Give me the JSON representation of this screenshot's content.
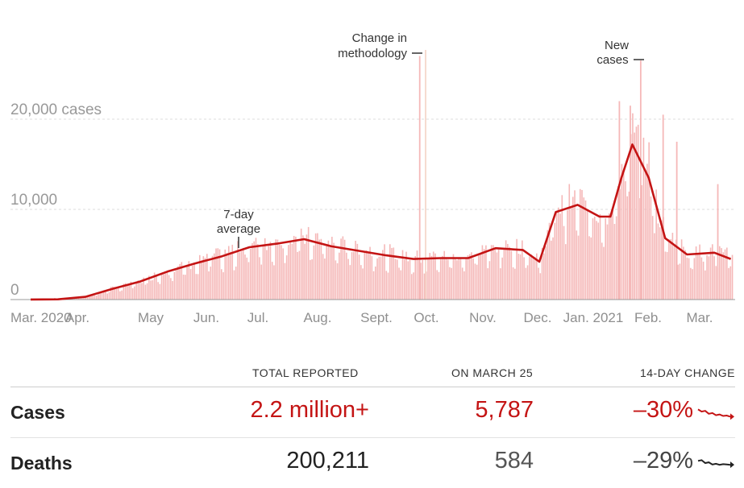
{
  "chart_data": {
    "type": "bar",
    "y_ticks": [
      {
        "value": 0,
        "label": "0"
      },
      {
        "value": 10000,
        "label": "10,000"
      },
      {
        "value": 20000,
        "label": "20,000 cases"
      }
    ],
    "ylim": [
      0,
      27500
    ],
    "x_ticks": [
      "Mar. 2020",
      "Apr.",
      "May",
      "Jun.",
      "Jul.",
      "Aug.",
      "Sept.",
      "Oct.",
      "Nov.",
      "Dec.",
      "Jan. 2021",
      "Feb.",
      "Mar."
    ],
    "grid": true,
    "average_series": {
      "name": "7-day average",
      "months": [
        0,
        0.5,
        1,
        1.5,
        2,
        2.5,
        3,
        3.5,
        4,
        4.5,
        5,
        5.5,
        6,
        6.5,
        7,
        7.5,
        8,
        8.5,
        9,
        9.3,
        9.6,
        10,
        10.4,
        10.6,
        10.8,
        11,
        11.3,
        11.6,
        12,
        12.5,
        12.8
      ],
      "values": [
        10,
        30,
        300,
        1200,
        2000,
        3100,
        4000,
        4800,
        5800,
        6200,
        6700,
        5900,
        5400,
        4900,
        4500,
        4600,
        4600,
        5700,
        5500,
        4200,
        9700,
        10500,
        9200,
        9200,
        13500,
        17200,
        13500,
        6800,
        5000,
        5200,
        4500
      ]
    },
    "daily_cases": {
      "name": "New cases",
      "months": [
        0,
        1,
        1.5,
        2,
        2.5,
        3,
        3.5,
        4,
        4.5,
        5,
        5.5,
        6,
        6.5,
        7,
        7.5,
        8,
        8.5,
        9,
        9.3,
        9.6,
        10,
        10.4,
        10.6,
        10.8,
        11,
        11.2,
        11.3,
        11.5,
        11.7,
        12,
        12.5,
        12.8
      ],
      "values": [
        10,
        300,
        1200,
        2000,
        3100,
        4000,
        4800,
        5800,
        6200,
        6700,
        5900,
        5400,
        4900,
        4500,
        4600,
        4600,
        5700,
        5500,
        4200,
        9700,
        10500,
        9200,
        9200,
        13500,
        17200,
        15500,
        13500,
        8000,
        6800,
        5000,
        5200,
        4500
      ],
      "spikes": [
        {
          "month": 7.1,
          "value": 27000
        },
        {
          "month": 11.14,
          "value": 26500
        },
        {
          "month": 10.75,
          "value": 22000
        },
        {
          "month": 10.95,
          "value": 21500
        },
        {
          "month": 11.55,
          "value": 20500
        },
        {
          "month": 11.8,
          "value": 17500
        },
        {
          "month": 12.55,
          "value": 12800
        }
      ]
    },
    "annotations": [
      {
        "text_lines": [
          "Change in",
          "methodology"
        ],
        "month": 7.1
      },
      {
        "text_lines": [
          "New",
          "cases"
        ],
        "month": 11.14
      },
      {
        "text_lines": [
          "7-day",
          "average"
        ],
        "month": 3.6
      }
    ],
    "colors": {
      "bars": "#f5b8b8",
      "avg_line": "#c41414",
      "method_line": "#f3cfc0",
      "grid": "#dddddd"
    }
  },
  "stats": {
    "headers": {
      "total": "TOTAL REPORTED",
      "date": "ON MARCH 25",
      "change": "14-DAY CHANGE"
    },
    "rows": [
      {
        "label": "Cases",
        "total": "2.2 million+",
        "day": "5,787",
        "change": "–30%",
        "color": "#c41414",
        "day_color": "#c41414",
        "total_color": "#c41414",
        "trend": [
          0.3,
          0.45,
          0.4,
          0.6,
          0.55,
          0.7,
          0.65,
          0.75,
          0.72,
          0.8
        ]
      },
      {
        "label": "Deaths",
        "total": "200,211",
        "day": "584",
        "change": "–29%",
        "color": "#222222",
        "day_color": "#555555",
        "total_color": "#222222",
        "trend": [
          0.35,
          0.3,
          0.5,
          0.45,
          0.6,
          0.55,
          0.62,
          0.58,
          0.6,
          0.62
        ]
      }
    ]
  }
}
